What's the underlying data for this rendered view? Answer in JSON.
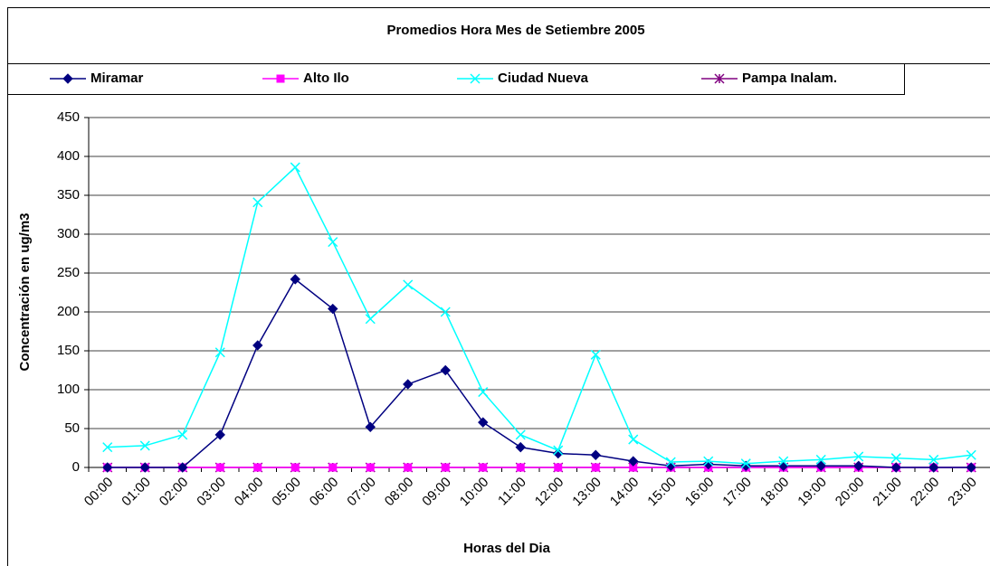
{
  "chart_data": {
    "type": "line",
    "title": "Promedios Hora Mes de Setiembre 2005",
    "x_label": "Horas del Dia",
    "y_label": "Concentración en ug/m3",
    "categories": [
      "00:00",
      "01:00",
      "02:00",
      "03:00",
      "04:00",
      "05:00",
      "06:00",
      "07:00",
      "08:00",
      "09:00",
      "10:00",
      "11:00",
      "12:00",
      "13:00",
      "14:00",
      "15:00",
      "16:00",
      "17:00",
      "18:00",
      "19:00",
      "20:00",
      "21:00",
      "22:00",
      "23:00"
    ],
    "series": [
      {
        "name": "Miramar",
        "color": "#000080",
        "marker": "diamond",
        "values": [
          0,
          0,
          0,
          42,
          157,
          242,
          204,
          52,
          107,
          125,
          58,
          26,
          18,
          16,
          8,
          2,
          4,
          2,
          2,
          2,
          2,
          0,
          0,
          0
        ]
      },
      {
        "name": "Alto Ilo",
        "color": "#ff00ff",
        "marker": "square",
        "values": [
          0,
          0,
          0,
          0,
          0,
          0,
          0,
          0,
          0,
          0,
          0,
          0,
          0,
          0,
          0,
          0,
          0,
          0,
          0,
          0,
          0,
          0,
          0,
          0
        ]
      },
      {
        "name": "Ciudad Nueva",
        "color": "#00ffff",
        "marker": "x",
        "values": [
          26,
          28,
          42,
          148,
          341,
          386,
          290,
          191,
          235,
          200,
          97,
          42,
          22,
          145,
          36,
          7,
          8,
          5,
          8,
          10,
          14,
          12,
          10,
          16
        ]
      },
      {
        "name": "Pampa Inalam.",
        "color": "#800080",
        "marker": "star",
        "values": [
          0,
          0,
          0,
          0,
          0,
          0,
          0,
          0,
          0,
          0,
          0,
          0,
          0,
          0,
          0,
          0,
          0,
          0,
          0,
          0,
          0,
          0,
          0,
          0
        ]
      }
    ],
    "ylim": [
      0,
      450
    ],
    "yticks": [
      0,
      50,
      100,
      150,
      200,
      250,
      300,
      350,
      400,
      450
    ],
    "grid": true
  }
}
